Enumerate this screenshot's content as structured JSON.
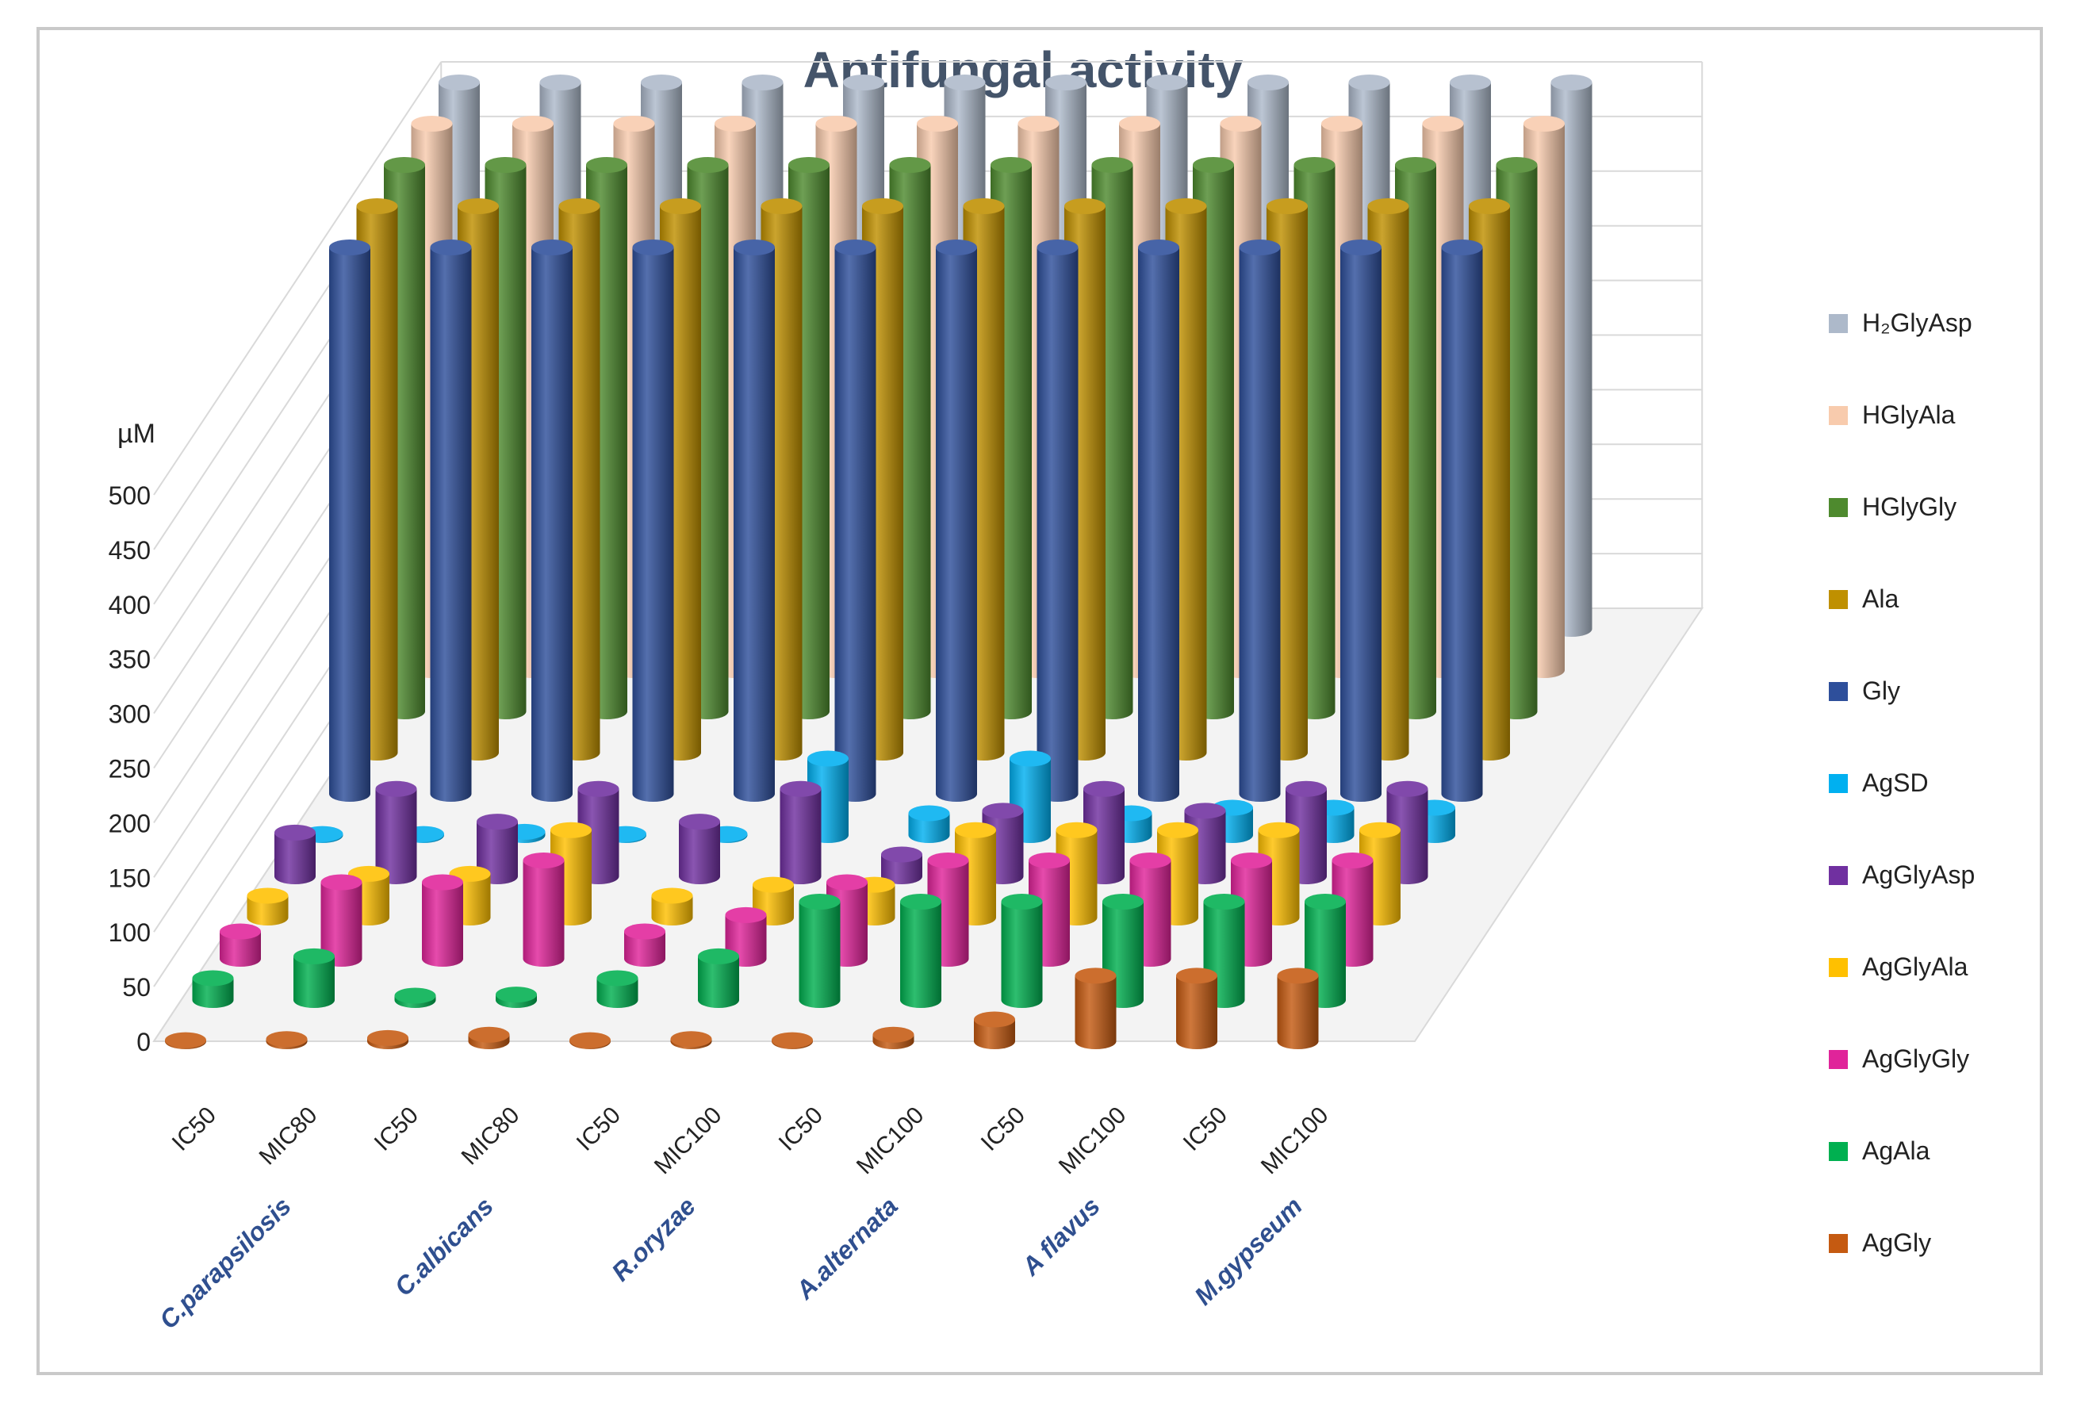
{
  "chart_data": {
    "type": "bar",
    "subtype": "3d-column",
    "title": "Antifungal activity",
    "ylabel": "µM",
    "ylim": [
      0,
      500
    ],
    "yticks": [
      0,
      50,
      100,
      150,
      200,
      250,
      300,
      350,
      400,
      450,
      500
    ],
    "categories": [
      "IC50",
      "MIC80",
      "IC50",
      "MIC80",
      "IC50",
      "MIC100",
      "IC50",
      "MIC100",
      "IC50",
      "MIC100",
      "IC50",
      "MIC100"
    ],
    "groups": [
      "C.parapsilosis",
      "C.albicans",
      "R.oryzae",
      "A.alternata",
      "A flavus",
      "M.gypseum"
    ],
    "series": [
      {
        "name": "AgGly",
        "color": "#c55a11",
        "values": [
          1,
          2,
          3,
          6,
          1,
          2,
          1,
          6,
          20,
          60,
          60,
          60
        ]
      },
      {
        "name": "AgAla",
        "color": "#00b050",
        "values": [
          20,
          40,
          4,
          5,
          20,
          40,
          90,
          90,
          90,
          90,
          90,
          90
        ]
      },
      {
        "name": "AgGlyGly",
        "color": "#e0249a",
        "values": [
          25,
          70,
          70,
          90,
          25,
          40,
          70,
          90,
          90,
          90,
          90,
          90
        ]
      },
      {
        "name": "AgGlyAla",
        "color": "#ffc000",
        "values": [
          20,
          40,
          40,
          80,
          20,
          30,
          30,
          80,
          80,
          80,
          80,
          80
        ]
      },
      {
        "name": "AgGlyAsp",
        "color": "#7030a0",
        "values": [
          40,
          80,
          50,
          80,
          50,
          80,
          20,
          60,
          80,
          60,
          80,
          80
        ]
      },
      {
        "name": "AgSD",
        "color": "#00b0f0",
        "values": [
          1,
          1,
          3,
          1,
          1,
          70,
          20,
          70,
          20,
          25,
          25,
          25
        ]
      },
      {
        "name": "Gly",
        "color": "#2e4f9b",
        "values": [
          500,
          500,
          500,
          500,
          500,
          500,
          500,
          500,
          500,
          500,
          500,
          500
        ]
      },
      {
        "name": "Ala",
        "color": "#bf9000",
        "values": [
          500,
          500,
          500,
          500,
          500,
          500,
          500,
          500,
          500,
          500,
          500,
          500
        ]
      },
      {
        "name": "HGlyGly",
        "color": "#4e8a2e",
        "values": [
          500,
          500,
          500,
          500,
          500,
          500,
          500,
          500,
          500,
          500,
          500,
          500
        ]
      },
      {
        "name": "HGlyAla",
        "color": "#f8cbad",
        "values": [
          500,
          500,
          500,
          500,
          500,
          500,
          500,
          500,
          500,
          500,
          500,
          500
        ]
      },
      {
        "name": "H2GlyAsp",
        "color": "#adb9ca",
        "values": [
          500,
          500,
          500,
          500,
          500,
          500,
          500,
          500,
          500,
          500,
          500,
          500
        ]
      }
    ],
    "legend": [
      {
        "label": "H₂GlyAsp",
        "color": "#adb9ca"
      },
      {
        "label": "HGlyAla",
        "color": "#f8cbad"
      },
      {
        "label": "HGlyGly",
        "color": "#4e8a2e"
      },
      {
        "label": "Ala",
        "color": "#bf9000"
      },
      {
        "label": "Gly",
        "color": "#2e4f9b"
      },
      {
        "label": "AgSD",
        "color": "#00b0f0"
      },
      {
        "label": "AgGlyAsp",
        "color": "#7030a0"
      },
      {
        "label": "AgGlyAla",
        "color": "#ffc000"
      },
      {
        "label": "AgGlyGly",
        "color": "#e0249a"
      },
      {
        "label": "AgAla",
        "color": "#00b050"
      },
      {
        "label": "AgGly",
        "color": "#c55a11"
      }
    ],
    "legend_position": "right",
    "grid": true
  }
}
